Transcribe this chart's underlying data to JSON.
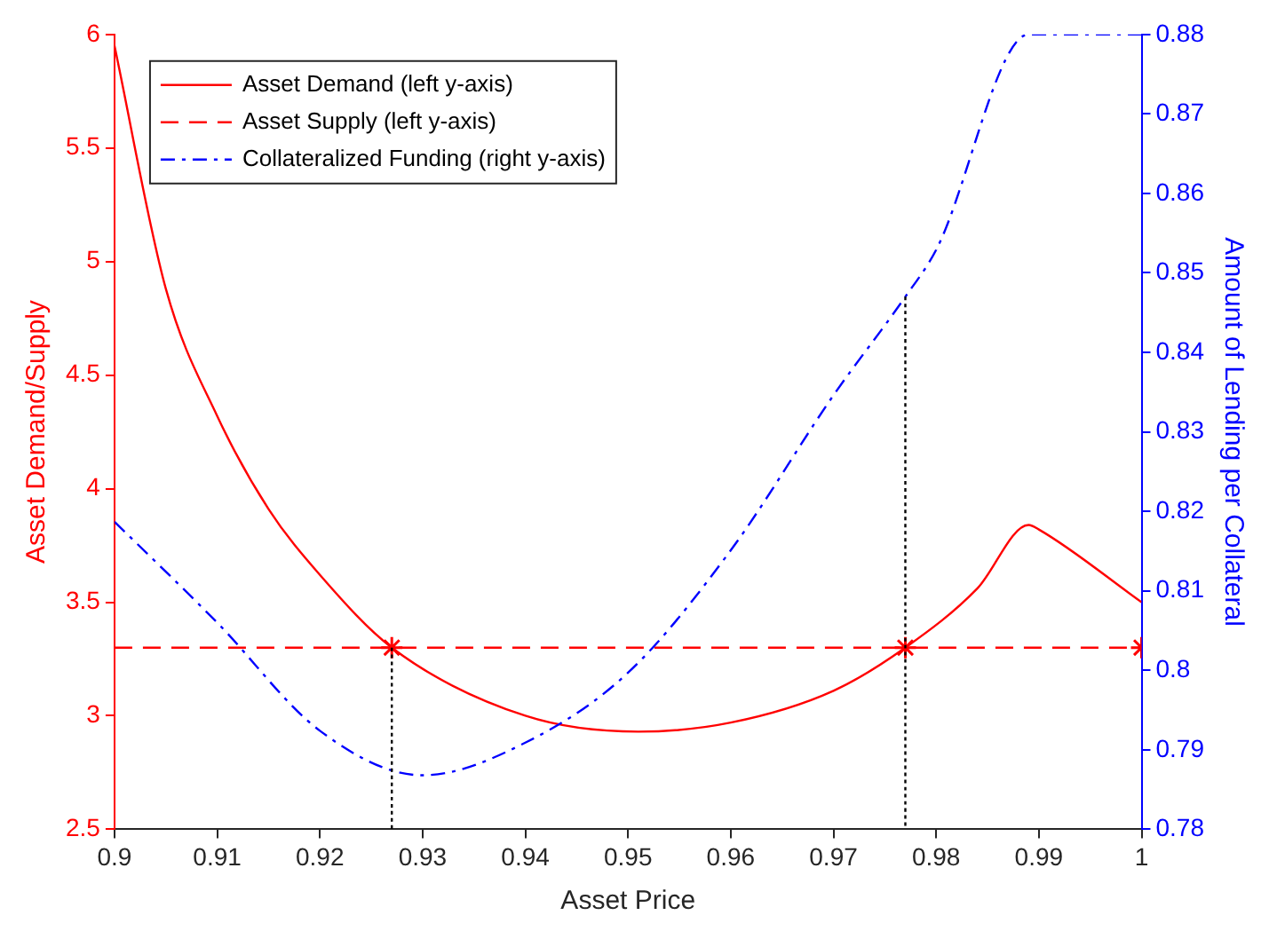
{
  "chart_data": {
    "type": "line",
    "xlabel": "Asset Price",
    "ylabel": "Asset Demand/Supply",
    "y2label": "Amount of Lending per Collateral",
    "xlim": [
      0.9,
      1
    ],
    "xticks": [
      0.9,
      0.91,
      0.92,
      0.93,
      0.94,
      0.95,
      0.96,
      0.97,
      0.98,
      0.99,
      1
    ],
    "ylim": [
      2.5,
      6
    ],
    "yticks": [
      2.5,
      3,
      3.5,
      4,
      4.5,
      5,
      5.5,
      6
    ],
    "y2lim": [
      0.78,
      0.88
    ],
    "y2ticks": [
      0.78,
      0.79,
      0.8,
      0.81,
      0.82,
      0.83,
      0.84,
      0.85,
      0.86,
      0.87,
      0.88
    ],
    "legend": "top left",
    "grid": false,
    "series": [
      {
        "name": "Asset Demand (left y-axis)",
        "color": "#ff0000",
        "line_style": "solid",
        "marker": "none",
        "x": [
          0.9,
          0.905,
          0.91,
          0.915,
          0.92,
          0.927,
          0.94,
          0.951,
          0.96,
          0.97,
          0.977,
          0.984,
          0.989,
          0.99,
          1
        ],
        "values": [
          5.95,
          4.88,
          4.32,
          3.91,
          3.62,
          3.3,
          3.0,
          2.93,
          2.97,
          3.11,
          3.3,
          3.56,
          3.84,
          3.82,
          3.5
        ]
      },
      {
        "name": "Asset Supply (left y-axis)",
        "color": "#ff0000",
        "line_style": "dashed",
        "marker": "none",
        "x": [
          0.9,
          1
        ],
        "values": [
          3.3,
          3.3
        ]
      },
      {
        "name": "Collateralized Funding (right y-axis)",
        "color": "#0000ff",
        "line_style": "dashdot",
        "marker": "none",
        "axis": "y2",
        "x": [
          0.9,
          0.91,
          0.92,
          0.93,
          0.94,
          0.95,
          0.96,
          0.97,
          0.977,
          0.98,
          0.989,
          1
        ],
        "values": [
          0.8187,
          0.806,
          0.7924,
          0.7868,
          0.7909,
          0.7997,
          0.8151,
          0.8346,
          0.847,
          0.8529,
          0.88,
          0.88
        ]
      },
      {
        "type": "scatter",
        "color": "#ff0000",
        "marker": "cross",
        "x": [
          0.927,
          0.977,
          1
        ],
        "values": [
          3.3,
          3.3,
          3.3
        ]
      },
      {
        "color": "#000000",
        "line_style": "dotted",
        "marker": "none",
        "x": [
          0.927,
          0.927
        ],
        "values": [
          3.3,
          2.5
        ]
      },
      {
        "color": "#000000",
        "line_style": "dotted",
        "marker": "none",
        "axis": "y2",
        "x": [
          0.977,
          0.977
        ],
        "values": [
          0.847,
          0.78
        ]
      }
    ]
  }
}
